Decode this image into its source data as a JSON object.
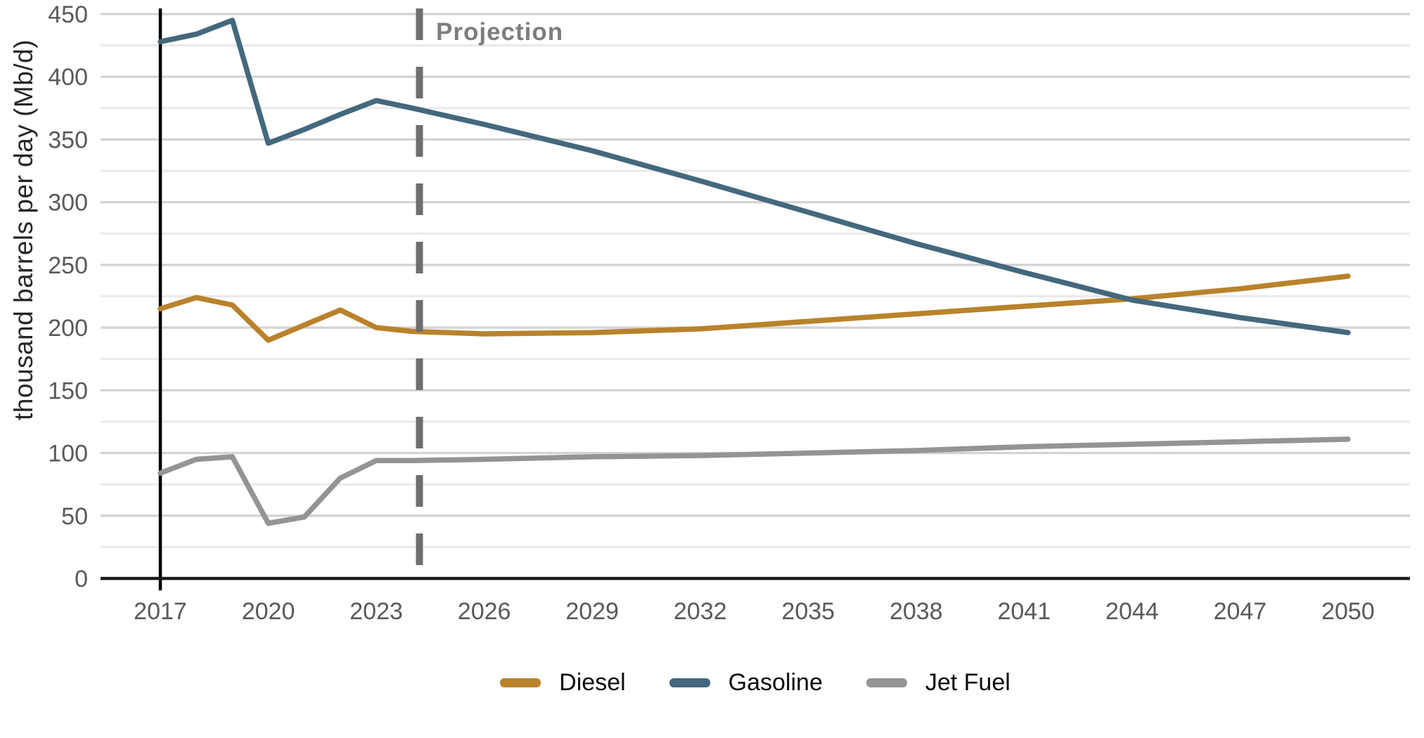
{
  "chart_data": {
    "type": "line",
    "title": "",
    "xlabel": "",
    "ylabel": "thousand barrels per day (Mb/d)",
    "ylim": [
      0,
      450
    ],
    "xlim": [
      2015.3,
      2051.7
    ],
    "y_ticks": [
      0,
      50,
      100,
      150,
      200,
      250,
      300,
      350,
      400,
      450
    ],
    "x_ticks": [
      2017,
      2020,
      2023,
      2026,
      2029,
      2032,
      2035,
      2038,
      2041,
      2044,
      2047,
      2050
    ],
    "grid": "horizontal, minor every 25, major every 50",
    "legend_position": "bottom-center",
    "annotations": {
      "projection_label": "Projection",
      "projection_line_x": 2024.2,
      "history_start_line_x": 2017
    },
    "series": [
      {
        "name": "Diesel",
        "color": "#b9822c",
        "x": [
          2017,
          2018,
          2019,
          2020,
          2021,
          2022,
          2023,
          2024,
          2026,
          2029,
          2032,
          2035,
          2038,
          2041,
          2044,
          2047,
          2050
        ],
        "values": [
          215,
          224,
          218,
          190,
          202,
          214,
          200,
          197,
          195,
          196,
          199,
          205,
          211,
          217,
          223,
          231,
          241
        ]
      },
      {
        "name": "Gasoline",
        "color": "#44687d",
        "x": [
          2017,
          2018,
          2019,
          2020,
          2021,
          2022,
          2023,
          2024,
          2026,
          2029,
          2032,
          2035,
          2038,
          2041,
          2044,
          2047,
          2050
        ],
        "values": [
          428,
          434,
          445,
          347,
          358,
          370,
          381,
          375,
          362,
          341,
          317,
          292,
          267,
          244,
          222,
          208,
          196
        ]
      },
      {
        "name": "Jet Fuel",
        "color": "#949494",
        "x": [
          2017,
          2018,
          2019,
          2020,
          2021,
          2022,
          2023,
          2024,
          2026,
          2029,
          2032,
          2035,
          2038,
          2041,
          2044,
          2047,
          2050
        ],
        "values": [
          84,
          95,
          97,
          44,
          49,
          80,
          94,
          94,
          95,
          97,
          98,
          100,
          102,
          105,
          107,
          109,
          111
        ]
      }
    ]
  },
  "colors": {
    "grid_major": "#d2d2d2",
    "grid_minor": "#eaeaea",
    "axis_line": "#1a1a1a",
    "history_line": "#000000",
    "projection_line": "#6e6e6e",
    "tick_text": "#595959"
  }
}
